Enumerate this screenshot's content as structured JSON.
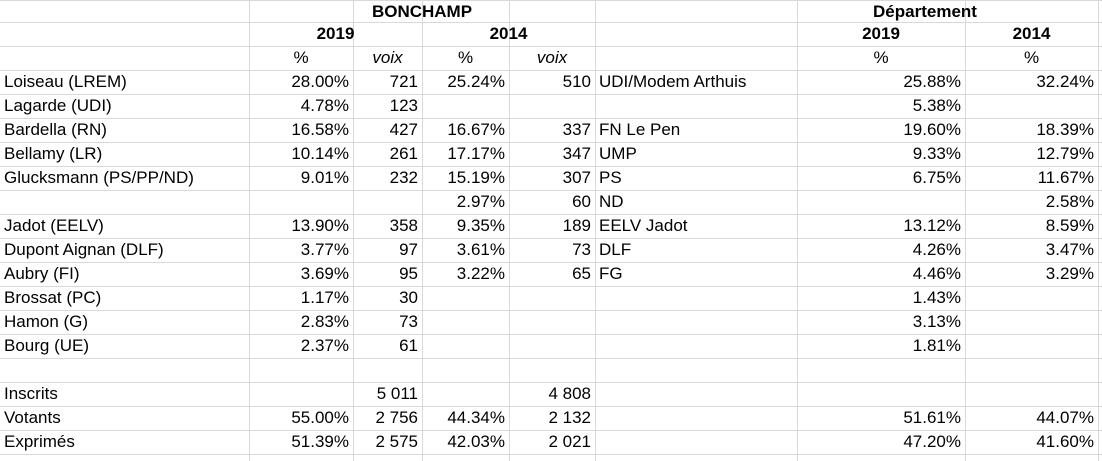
{
  "header": {
    "bonchamp": "BONCHAMP",
    "departement": "Département",
    "year_2019": "2019",
    "year_2014": "2014",
    "pct": "%",
    "voix": "voix"
  },
  "rows": [
    {
      "label": "Loiseau (LREM)",
      "p19": "28.00%",
      "v19": "721",
      "p14": "25.24%",
      "v14": "510",
      "party14": "UDI/Modem Arthuis",
      "d19": "25.88%",
      "d14": "32.24%"
    },
    {
      "label": "Lagarde (UDI)",
      "p19": "4.78%",
      "v19": "123",
      "p14": "",
      "v14": "",
      "party14": "",
      "d19": "5.38%",
      "d14": ""
    },
    {
      "label": "Bardella (RN)",
      "p19": "16.58%",
      "v19": "427",
      "p14": "16.67%",
      "v14": "337",
      "party14": "FN Le Pen",
      "d19": "19.60%",
      "d14": "18.39%"
    },
    {
      "label": "Bellamy (LR)",
      "p19": "10.14%",
      "v19": "261",
      "p14": "17.17%",
      "v14": "347",
      "party14": "UMP",
      "d19": "9.33%",
      "d14": "12.79%"
    },
    {
      "label": "Glucksmann (PS/PP/ND)",
      "p19": "9.01%",
      "v19": "232",
      "p14": "15.19%",
      "v14": "307",
      "party14": "PS",
      "d19": "6.75%",
      "d14": "11.67%"
    },
    {
      "label": "",
      "p19": "",
      "v19": "",
      "p14": "2.97%",
      "v14": "60",
      "party14": "ND",
      "d19": "",
      "d14": "2.58%"
    },
    {
      "label": "Jadot (EELV)",
      "p19": "13.90%",
      "v19": "358",
      "p14": "9.35%",
      "v14": "189",
      "party14": "EELV Jadot",
      "d19": "13.12%",
      "d14": "8.59%"
    },
    {
      "label": "Dupont Aignan (DLF)",
      "p19": "3.77%",
      "v19": "97",
      "p14": "3.61%",
      "v14": "73",
      "party14": "DLF",
      "d19": "4.26%",
      "d14": "3.47%"
    },
    {
      "label": "Aubry (FI)",
      "p19": "3.69%",
      "v19": "95",
      "p14": "3.22%",
      "v14": "65",
      "party14": "FG",
      "d19": "4.46%",
      "d14": "3.29%"
    },
    {
      "label": "Brossat (PC)",
      "p19": "1.17%",
      "v19": "30",
      "p14": "",
      "v14": "",
      "party14": "",
      "d19": "1.43%",
      "d14": ""
    },
    {
      "label": "Hamon (G)",
      "p19": "2.83%",
      "v19": "73",
      "p14": "",
      "v14": "",
      "party14": "",
      "d19": "3.13%",
      "d14": ""
    },
    {
      "label": "Bourg (UE)",
      "p19": "2.37%",
      "v19": "61",
      "p14": "",
      "v14": "",
      "party14": "",
      "d19": "1.81%",
      "d14": ""
    },
    {
      "label": "",
      "p19": "",
      "v19": "",
      "p14": "",
      "v14": "",
      "party14": "",
      "d19": "",
      "d14": ""
    },
    {
      "label": "Inscrits",
      "p19": "",
      "v19": "5 011",
      "p14": "",
      "v14": "4 808",
      "party14": "",
      "d19": "",
      "d14": ""
    },
    {
      "label": "Votants",
      "p19": "55.00%",
      "v19": "2 756",
      "p14": "44.34%",
      "v14": "2 132",
      "party14": "",
      "d19": "51.61%",
      "d14": "44.07%"
    },
    {
      "label": "Exprimés",
      "p19": "51.39%",
      "v19": "2 575",
      "p14": "42.03%",
      "v14": "2 021",
      "party14": "",
      "d19": "47.20%",
      "d14": "41.60%"
    }
  ]
}
